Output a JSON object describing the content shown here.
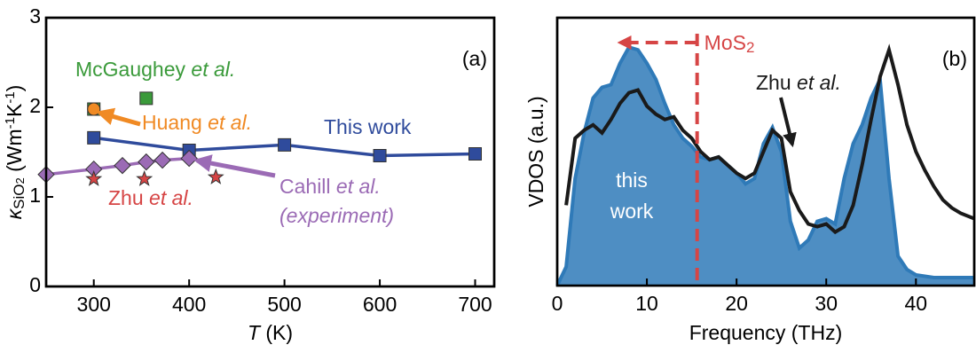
{
  "chart_data": [
    {
      "type": "line",
      "panel_label": "(a)",
      "x_label": [
        {
          "text": "T",
          "style": "italic"
        },
        {
          "text": " (K)"
        }
      ],
      "y_label": [
        {
          "text": "κ",
          "style": "italic"
        },
        {
          "text": "SiO",
          "style": "sub"
        },
        {
          "text": "2",
          "style": "subsub"
        },
        {
          "text": " (Wm"
        },
        {
          "text": "-1",
          "style": "sup"
        },
        {
          "text": "K"
        },
        {
          "text": "-1",
          "style": "sup"
        },
        {
          "text": ")"
        }
      ],
      "xlim": [
        250,
        720
      ],
      "xticks": [
        300,
        400,
        500,
        600,
        700
      ],
      "ylim": [
        0,
        3
      ],
      "yticks": [
        0,
        1,
        2,
        3
      ],
      "series": [
        {
          "name": [
            {
              "text": "This work"
            }
          ],
          "color": "#2f4b9c",
          "marker": "square",
          "line": true,
          "x": [
            300,
            400,
            500,
            600,
            700
          ],
          "values": [
            1.66,
            1.52,
            1.58,
            1.46,
            1.48
          ]
        },
        {
          "name": [
            {
              "text": "McGaughey "
            },
            {
              "text": "et al.",
              "style": "italic"
            }
          ],
          "color": "#3a9a3a",
          "marker": "square",
          "line": false,
          "x": [
            300,
            355
          ],
          "values": [
            1.98,
            2.1
          ]
        },
        {
          "name": [
            {
              "text": "Huang "
            },
            {
              "text": "et al.",
              "style": "italic"
            }
          ],
          "color": "#f08a24",
          "marker": "circle",
          "line": false,
          "x": [
            300
          ],
          "values": [
            1.98
          ]
        },
        {
          "name": [
            {
              "text": "Cahill "
            },
            {
              "text": "et al.",
              "style": "italic"
            }
          ],
          "note": [
            {
              "text": "(experiment)",
              "style": "italic"
            }
          ],
          "color": "#9b6bb5",
          "marker": "diamond",
          "line": true,
          "x": [
            250,
            300,
            330,
            355,
            372,
            400
          ],
          "values": [
            1.25,
            1.31,
            1.35,
            1.39,
            1.41,
            1.43
          ]
        },
        {
          "name": [
            {
              "text": "Zhu "
            },
            {
              "text": "et al.",
              "style": "italic"
            }
          ],
          "color": "#d64545",
          "marker": "star",
          "line": false,
          "x": [
            300,
            353,
            428
          ],
          "values": [
            1.2,
            1.2,
            1.22
          ]
        }
      ]
    },
    {
      "type": "area",
      "panel_label": "(b)",
      "x_label": [
        {
          "text": "Frequency (THz)"
        }
      ],
      "y_label": [
        {
          "text": "VDOS (a.u.)"
        }
      ],
      "xlim": [
        0,
        46.5
      ],
      "xticks": [
        0,
        10,
        20,
        30,
        40
      ],
      "ylim": [
        0,
        1
      ],
      "marker_line": {
        "x": 15.6,
        "arrow_to": 7,
        "label": [
          {
            "text": "MoS"
          },
          {
            "text": "2",
            "style": "sub"
          }
        ],
        "color": "#d64545"
      },
      "series": [
        {
          "name": [
            "this",
            "work"
          ],
          "color": "#2f7ab8",
          "fill": true,
          "x": [
            0,
            1,
            2,
            3,
            4,
            5,
            6,
            7,
            8,
            9,
            10,
            11,
            12,
            13,
            14,
            15,
            16,
            17,
            18,
            19,
            20,
            21,
            22,
            23,
            24,
            25,
            26,
            27,
            28,
            29,
            30,
            31,
            32,
            33,
            34,
            35,
            36,
            37,
            38,
            39,
            40,
            42,
            46.5
          ],
          "values": [
            0,
            0.07,
            0.4,
            0.57,
            0.7,
            0.74,
            0.75,
            0.83,
            0.89,
            0.88,
            0.83,
            0.77,
            0.68,
            0.6,
            0.55,
            0.52,
            0.48,
            0.47,
            0.48,
            0.45,
            0.42,
            0.38,
            0.4,
            0.53,
            0.59,
            0.5,
            0.24,
            0.14,
            0.17,
            0.24,
            0.25,
            0.23,
            0.4,
            0.53,
            0.6,
            0.7,
            0.77,
            0.4,
            0.11,
            0.06,
            0.04,
            0.03,
            0.03
          ]
        },
        {
          "name": [
            {
              "text": "Zhu "
            },
            {
              "text": "et al.",
              "style": "italic"
            }
          ],
          "color": "#1a1a1a",
          "fill": false,
          "x": [
            1,
            2,
            3,
            4,
            5,
            6,
            7,
            8,
            9,
            10,
            11,
            12,
            13,
            14,
            15,
            16,
            17,
            18,
            19,
            20,
            21,
            22,
            23,
            24,
            25,
            26,
            27,
            28,
            29,
            30,
            31,
            32,
            33,
            34,
            35,
            36,
            37,
            38,
            39,
            40,
            41,
            42,
            43,
            44,
            45,
            46.5
          ],
          "values": [
            0.3,
            0.55,
            0.58,
            0.6,
            0.57,
            0.62,
            0.68,
            0.72,
            0.73,
            0.67,
            0.64,
            0.62,
            0.63,
            0.58,
            0.55,
            0.5,
            0.47,
            0.48,
            0.45,
            0.42,
            0.4,
            0.42,
            0.5,
            0.58,
            0.55,
            0.35,
            0.28,
            0.23,
            0.22,
            0.23,
            0.2,
            0.22,
            0.3,
            0.45,
            0.62,
            0.78,
            0.88,
            0.75,
            0.6,
            0.5,
            0.43,
            0.37,
            0.32,
            0.29,
            0.27,
            0.25
          ]
        }
      ]
    }
  ]
}
